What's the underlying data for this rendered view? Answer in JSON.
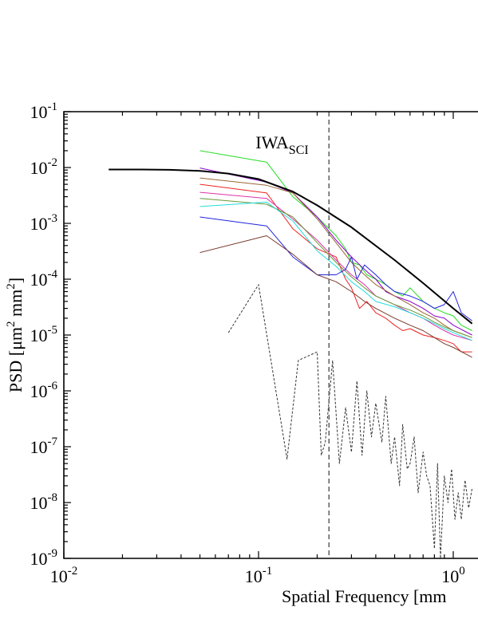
{
  "chart_data": {
    "type": "line",
    "xlabel": "Spatial Frequency [mm",
    "ylabel_main": "PSD [μm",
    "ylabel_sup1": "2",
    "ylabel_mid": " mm",
    "ylabel_sup2": "2",
    "ylabel_end": "]",
    "x_scale": "log",
    "y_scale": "log",
    "xlim": [
      0.01,
      1.25
    ],
    "ylim": [
      1e-09,
      0.1
    ],
    "grid": false,
    "x_ticks": [
      {
        "value": 0.01,
        "base": "10",
        "exp": "-2"
      },
      {
        "value": 0.1,
        "base": "10",
        "exp": "-1"
      },
      {
        "value": 1,
        "base": "10",
        "exp": "0"
      }
    ],
    "y_ticks": [
      {
        "value": 0.1,
        "base": "10",
        "exp": "-1"
      },
      {
        "value": 0.01,
        "base": "10",
        "exp": "-2"
      },
      {
        "value": 0.001,
        "base": "10",
        "exp": "-3"
      },
      {
        "value": 0.0001,
        "base": "10",
        "exp": "-4"
      },
      {
        "value": 1e-05,
        "base": "10",
        "exp": "-5"
      },
      {
        "value": 1e-06,
        "base": "10",
        "exp": "-6"
      },
      {
        "value": 1e-07,
        "base": "10",
        "exp": "-7"
      },
      {
        "value": 1e-08,
        "base": "10",
        "exp": "-8"
      },
      {
        "value": 1e-09,
        "base": "10",
        "exp": "-9"
      }
    ],
    "annotations": [
      {
        "text": "IWA",
        "subscript": "SCI",
        "x": 0.23,
        "style": "dashed-vertical-line",
        "color": "#666666"
      }
    ],
    "series": [
      {
        "color": "#000000",
        "width": 2,
        "dash": "",
        "points": [
          [
            0.017,
            0.0092
          ],
          [
            0.025,
            0.0092
          ],
          [
            0.035,
            0.0091
          ],
          [
            0.05,
            0.0087
          ],
          [
            0.07,
            0.0078
          ],
          [
            0.1,
            0.0062
          ],
          [
            0.15,
            0.0037
          ],
          [
            0.2,
            0.0021
          ],
          [
            0.3,
            0.00085
          ],
          [
            0.5,
            0.00022
          ],
          [
            0.7,
            8.5e-05
          ],
          [
            1.0,
            3e-05
          ],
          [
            1.25,
            1.6e-05
          ]
        ]
      },
      {
        "color": "#333333",
        "width": 1,
        "dash": "3,2",
        "points": [
          [
            0.07,
            1.1e-05
          ],
          [
            0.1,
            8e-05
          ],
          [
            0.14,
            6e-08
          ],
          [
            0.16,
            3.5e-06
          ],
          [
            0.2,
            5e-06
          ],
          [
            0.21,
            7e-08
          ],
          [
            0.22,
            1.2e-07
          ],
          [
            0.24,
            3.5e-06
          ],
          [
            0.26,
            5e-08
          ],
          [
            0.28,
            5e-07
          ],
          [
            0.3,
            8e-08
          ],
          [
            0.32,
            1.5e-06
          ],
          [
            0.34,
            7e-08
          ],
          [
            0.36,
            1e-06
          ],
          [
            0.38,
            1.5e-07
          ],
          [
            0.4,
            6e-07
          ],
          [
            0.43,
            1.2e-07
          ],
          [
            0.45,
            8e-07
          ],
          [
            0.48,
            5e-08
          ],
          [
            0.5,
            1.5e-07
          ],
          [
            0.53,
            2e-08
          ],
          [
            0.55,
            2.5e-07
          ],
          [
            0.58,
            4e-08
          ],
          [
            0.6,
            5e-08
          ],
          [
            0.63,
            1.5e-07
          ],
          [
            0.66,
            1.5e-08
          ],
          [
            0.7,
            8e-08
          ],
          [
            0.73,
            3e-08
          ],
          [
            0.76,
            2e-08
          ],
          [
            0.8,
            1.5e-09
          ],
          [
            0.83,
            5e-08
          ],
          [
            0.86,
            1e-09
          ],
          [
            0.9,
            3e-08
          ],
          [
            0.94,
            1e-08
          ],
          [
            0.98,
            4e-08
          ],
          [
            1.02,
            5e-09
          ],
          [
            1.06,
            1.5e-08
          ],
          [
            1.1,
            5e-09
          ],
          [
            1.15,
            2.5e-08
          ],
          [
            1.2,
            8e-09
          ],
          [
            1.25,
            1.8e-08
          ]
        ]
      },
      {
        "color": "#22dd22",
        "width": 1,
        "dash": "",
        "points": [
          [
            0.05,
            0.02
          ],
          [
            0.11,
            0.0125
          ],
          [
            0.15,
            0.003
          ],
          [
            0.2,
            0.0013
          ],
          [
            0.25,
            0.0006
          ],
          [
            0.28,
            0.00035
          ],
          [
            0.3,
            0.0002
          ],
          [
            0.33,
            0.00018
          ],
          [
            0.36,
            0.00012
          ],
          [
            0.4,
            0.0001
          ],
          [
            0.45,
            8e-05
          ],
          [
            0.5,
            6e-05
          ],
          [
            0.55,
            5e-05
          ],
          [
            0.6,
            7e-05
          ],
          [
            0.7,
            4e-05
          ],
          [
            0.8,
            3e-05
          ],
          [
            0.9,
            2.5e-05
          ],
          [
            1.0,
            2.2e-05
          ],
          [
            1.1,
            1.5e-05
          ],
          [
            1.25,
            1.2e-05
          ]
        ]
      },
      {
        "color": "#8800cc",
        "width": 1,
        "dash": "",
        "points": [
          [
            0.05,
            0.0098
          ],
          [
            0.11,
            0.0055
          ],
          [
            0.15,
            0.0035
          ],
          [
            0.2,
            0.0013
          ],
          [
            0.25,
            0.0005
          ],
          [
            0.3,
            0.00025
          ],
          [
            0.35,
            0.00015
          ],
          [
            0.4,
            0.0001
          ],
          [
            0.45,
            6e-05
          ],
          [
            0.5,
            5e-05
          ],
          [
            0.6,
            4e-05
          ],
          [
            0.7,
            3e-05
          ],
          [
            0.8,
            2.2e-05
          ],
          [
            0.9,
            2e-05
          ],
          [
            1.0,
            1.5e-05
          ],
          [
            1.25,
            1e-05
          ]
        ]
      },
      {
        "color": "#996633",
        "width": 1,
        "dash": "",
        "points": [
          [
            0.05,
            0.0065
          ],
          [
            0.11,
            0.0048
          ],
          [
            0.15,
            0.0035
          ],
          [
            0.2,
            0.0012
          ],
          [
            0.25,
            0.00045
          ],
          [
            0.3,
            0.0002
          ],
          [
            0.35,
            0.00012
          ],
          [
            0.4,
            8e-05
          ],
          [
            0.5,
            5e-05
          ],
          [
            0.6,
            3.5e-05
          ],
          [
            0.7,
            2.5e-05
          ],
          [
            0.8,
            2e-05
          ],
          [
            0.9,
            1.5e-05
          ],
          [
            1.0,
            1.2e-05
          ],
          [
            1.25,
            9e-06
          ]
        ]
      },
      {
        "color": "#ee2222",
        "width": 1,
        "dash": "",
        "points": [
          [
            0.05,
            0.005
          ],
          [
            0.11,
            0.0035
          ],
          [
            0.15,
            0.0008
          ],
          [
            0.2,
            0.00035
          ],
          [
            0.25,
            0.00025
          ],
          [
            0.28,
            0.0001
          ],
          [
            0.3,
            7e-05
          ],
          [
            0.33,
            3e-05
          ],
          [
            0.36,
            4e-05
          ],
          [
            0.4,
            2.5e-05
          ],
          [
            0.45,
            2e-05
          ],
          [
            0.5,
            1.5e-05
          ],
          [
            0.55,
            1.2e-05
          ],
          [
            0.6,
            1.3e-05
          ],
          [
            0.7,
            1e-05
          ],
          [
            0.8,
            9e-06
          ],
          [
            0.9,
            8e-06
          ],
          [
            1.0,
            7e-06
          ],
          [
            1.1,
            5e-06
          ],
          [
            1.25,
            5e-06
          ]
        ]
      },
      {
        "color": "#dd33aa",
        "width": 1,
        "dash": "",
        "points": [
          [
            0.05,
            0.0036
          ],
          [
            0.11,
            0.0028
          ],
          [
            0.15,
            0.0012
          ],
          [
            0.2,
            0.0005
          ],
          [
            0.25,
            0.00022
          ],
          [
            0.3,
            0.00012
          ],
          [
            0.35,
            8e-05
          ],
          [
            0.4,
            5e-05
          ],
          [
            0.5,
            3.5e-05
          ],
          [
            0.6,
            2.5e-05
          ],
          [
            0.7,
            2e-05
          ],
          [
            0.8,
            1.5e-05
          ],
          [
            0.9,
            1.2e-05
          ],
          [
            1.0,
            1e-05
          ],
          [
            1.25,
            8e-06
          ]
        ]
      },
      {
        "color": "#669933",
        "width": 1,
        "dash": "",
        "points": [
          [
            0.05,
            0.0028
          ],
          [
            0.11,
            0.0022
          ],
          [
            0.15,
            0.0013
          ],
          [
            0.2,
            0.00045
          ],
          [
            0.25,
            0.0002
          ],
          [
            0.3,
            0.00011
          ],
          [
            0.35,
            7e-05
          ],
          [
            0.4,
            5e-05
          ],
          [
            0.5,
            3.5e-05
          ],
          [
            0.6,
            2.8e-05
          ],
          [
            0.7,
            2.2e-05
          ],
          [
            0.8,
            1.7e-05
          ],
          [
            0.9,
            1.4e-05
          ],
          [
            1.0,
            1.2e-05
          ],
          [
            1.25,
            9e-06
          ]
        ]
      },
      {
        "color": "#22dddd",
        "width": 1,
        "dash": "",
        "points": [
          [
            0.05,
            0.002
          ],
          [
            0.11,
            0.0024
          ],
          [
            0.15,
            0.0011
          ],
          [
            0.2,
            0.00032
          ],
          [
            0.25,
            0.00017
          ],
          [
            0.3,
            9e-05
          ],
          [
            0.35,
            6e-05
          ],
          [
            0.4,
            4e-05
          ],
          [
            0.5,
            3.2e-05
          ],
          [
            0.6,
            2.5e-05
          ],
          [
            0.7,
            2e-05
          ],
          [
            0.8,
            1.6e-05
          ],
          [
            0.9,
            1.3e-05
          ],
          [
            1.0,
            1.1e-05
          ],
          [
            1.25,
            8e-06
          ]
        ]
      },
      {
        "color": "#2222dd",
        "width": 1,
        "dash": "",
        "points": [
          [
            0.05,
            0.0013
          ],
          [
            0.11,
            0.0009
          ],
          [
            0.15,
            0.00025
          ],
          [
            0.2,
            0.00012
          ],
          [
            0.25,
            0.00012
          ],
          [
            0.28,
            0.00015
          ],
          [
            0.3,
            0.00025
          ],
          [
            0.32,
            0.0001
          ],
          [
            0.35,
            0.00018
          ],
          [
            0.4,
            0.00012
          ],
          [
            0.45,
            8e-05
          ],
          [
            0.5,
            6e-05
          ],
          [
            0.6,
            5e-05
          ],
          [
            0.7,
            4e-05
          ],
          [
            0.8,
            3e-05
          ],
          [
            0.9,
            3.5e-05
          ],
          [
            1.0,
            6e-05
          ],
          [
            1.1,
            2.5e-05
          ],
          [
            1.25,
            1.8e-05
          ]
        ]
      },
      {
        "color": "#7a3d2e",
        "width": 1,
        "dash": "",
        "points": [
          [
            0.05,
            0.0003
          ],
          [
            0.11,
            0.0006
          ],
          [
            0.15,
            0.00028
          ],
          [
            0.2,
            0.00012
          ],
          [
            0.25,
            9e-05
          ],
          [
            0.3,
            6e-05
          ],
          [
            0.35,
            4e-05
          ],
          [
            0.4,
            3e-05
          ],
          [
            0.5,
            2e-05
          ],
          [
            0.6,
            1.5e-05
          ],
          [
            0.7,
            1.2e-05
          ],
          [
            0.8,
            9e-06
          ],
          [
            0.9,
            7e-06
          ],
          [
            1.0,
            6e-06
          ],
          [
            1.25,
            4e-06
          ]
        ]
      }
    ]
  }
}
